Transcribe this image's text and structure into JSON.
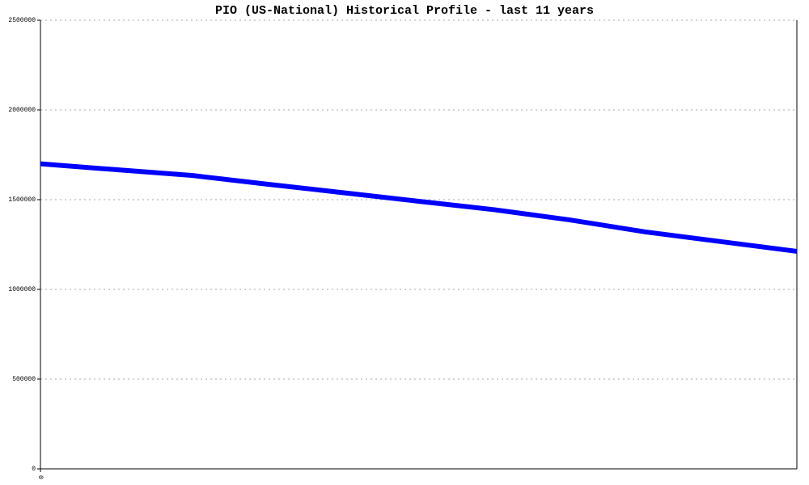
{
  "chart_data": {
    "type": "line",
    "title": "PIO (US-National) Historical Profile - last 11 years",
    "categories": [
      "0",
      null,
      null,
      null,
      null,
      null,
      null,
      null,
      null,
      null,
      null
    ],
    "series": [
      {
        "name": "PIO",
        "color": "#0000ff",
        "values": [
          1700000,
          1667000,
          1635000,
          1586000,
          1539000,
          1491000,
          1444000,
          1387000,
          1320000,
          1266000,
          1212000
        ]
      }
    ],
    "ylim": [
      0,
      2500000
    ],
    "yticks": [
      0,
      500000,
      1000000,
      1500000,
      2000000,
      2500000
    ],
    "grid": true
  }
}
